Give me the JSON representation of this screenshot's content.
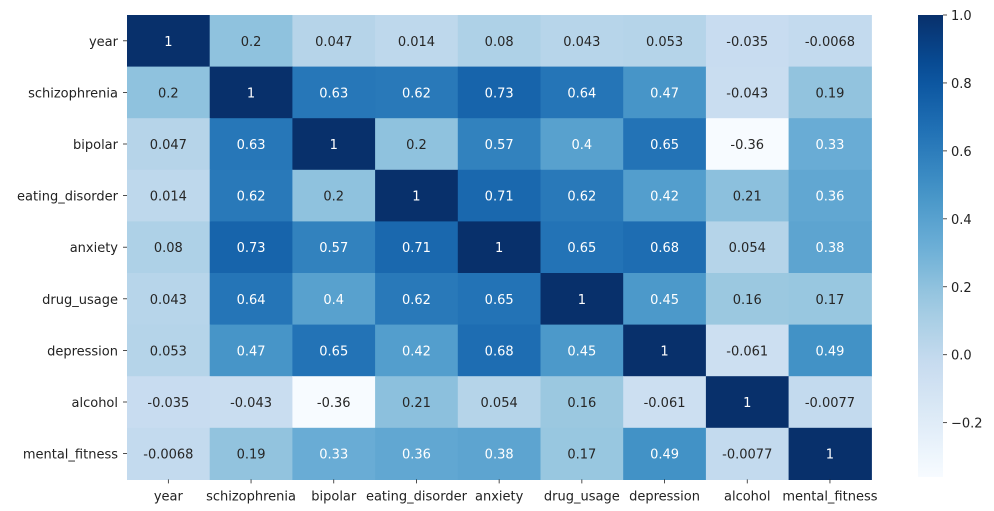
{
  "chart_data": {
    "type": "heatmap",
    "title": "",
    "xlabel": "",
    "ylabel": "",
    "rows": [
      "year",
      "schizophrenia",
      "bipolar",
      "eating_disorder",
      "anxiety",
      "drug_usage",
      "depression",
      "alcohol",
      "mental_fitness"
    ],
    "columns": [
      "year",
      "schizophrenia",
      "bipolar",
      "eating_disorder",
      "anxiety",
      "drug_usage",
      "depression",
      "alcohol",
      "mental_fitness"
    ],
    "values": [
      [
        1,
        0.2,
        0.047,
        0.014,
        0.08,
        0.043,
        0.053,
        -0.035,
        -0.0068
      ],
      [
        0.2,
        1,
        0.63,
        0.62,
        0.73,
        0.64,
        0.47,
        -0.043,
        0.19
      ],
      [
        0.047,
        0.63,
        1,
        0.2,
        0.57,
        0.4,
        0.65,
        -0.36,
        0.33
      ],
      [
        0.014,
        0.62,
        0.2,
        1,
        0.71,
        0.62,
        0.42,
        0.21,
        0.36
      ],
      [
        0.08,
        0.73,
        0.57,
        0.71,
        1,
        0.65,
        0.68,
        0.054,
        0.38
      ],
      [
        0.043,
        0.64,
        0.4,
        0.62,
        0.65,
        1,
        0.45,
        0.16,
        0.17
      ],
      [
        0.053,
        0.47,
        0.65,
        0.42,
        0.68,
        0.45,
        1,
        -0.061,
        0.49
      ],
      [
        -0.035,
        -0.043,
        -0.36,
        0.21,
        0.054,
        0.16,
        -0.061,
        1,
        -0.0077
      ],
      [
        -0.0068,
        0.19,
        0.33,
        0.36,
        0.38,
        0.17,
        0.49,
        -0.0077,
        1
      ]
    ],
    "labels": [
      [
        "1",
        "0.2",
        "0.047",
        "0.014",
        "0.08",
        "0.043",
        "0.053",
        "-0.035",
        "-0.0068"
      ],
      [
        "0.2",
        "1",
        "0.63",
        "0.62",
        "0.73",
        "0.64",
        "0.47",
        "-0.043",
        "0.19"
      ],
      [
        "0.047",
        "0.63",
        "1",
        "0.2",
        "0.57",
        "0.4",
        "0.65",
        "-0.36",
        "0.33"
      ],
      [
        "0.014",
        "0.62",
        "0.2",
        "1",
        "0.71",
        "0.62",
        "0.42",
        "0.21",
        "0.36"
      ],
      [
        "0.08",
        "0.73",
        "0.57",
        "0.71",
        "1",
        "0.65",
        "0.68",
        "0.054",
        "0.38"
      ],
      [
        "0.043",
        "0.64",
        "0.4",
        "0.62",
        "0.65",
        "1",
        "0.45",
        "0.16",
        "0.17"
      ],
      [
        "0.053",
        "0.47",
        "0.65",
        "0.42",
        "0.68",
        "0.45",
        "1",
        "-0.061",
        "0.49"
      ],
      [
        "-0.035",
        "-0.043",
        "-0.36",
        "0.21",
        "0.054",
        "0.16",
        "-0.061",
        "1",
        "-0.0077"
      ],
      [
        "-0.0068",
        "0.19",
        "0.33",
        "0.36",
        "0.38",
        "0.17",
        "0.49",
        "-0.0077",
        "1"
      ]
    ],
    "colormap": "Blues",
    "vmin": -0.36,
    "vmax": 1.0,
    "colorbar": {
      "ticks": [
        -0.2,
        0.0,
        0.2,
        0.4,
        0.6,
        0.8,
        1.0
      ],
      "tick_labels": [
        "−0.2",
        "0.0",
        "0.2",
        "0.4",
        "0.6",
        "0.8",
        "1.0"
      ]
    },
    "text_color_light": "#ffffff",
    "text_color_dark": "#262626"
  }
}
